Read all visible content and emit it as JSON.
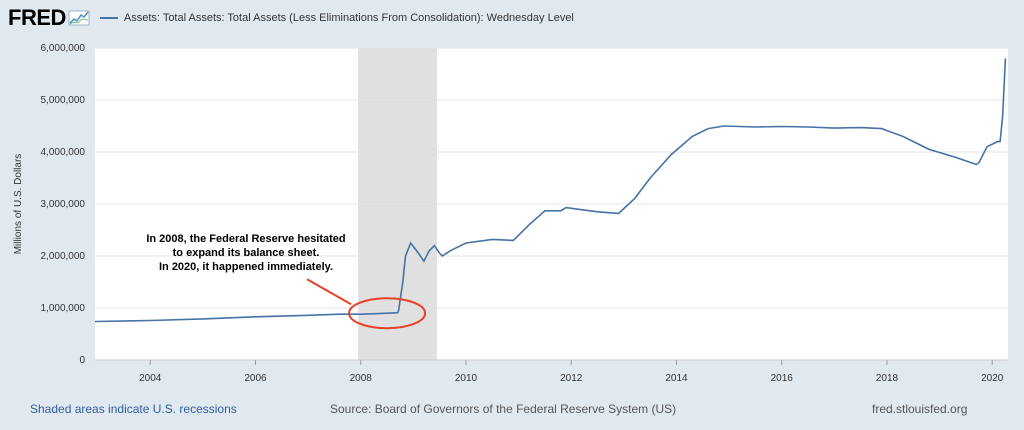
{
  "header": {
    "logo_text": "FRED",
    "logo_mark_icon": "fred-chart-mark-icon",
    "series_label": "Assets: Total Assets: Total Assets (Less Eliminations From Consolidation): Wednesday Level"
  },
  "footer": {
    "recession_note": "Shaded areas indicate U.S. recessions",
    "source": "Source: Board of Governors of the Federal Reserve System (US)",
    "site": "fred.stlouisfed.org"
  },
  "chart_data": {
    "type": "line",
    "title": "",
    "xlabel": "",
    "ylabel": "Millions of U.S. Dollars",
    "xlim": [
      2002.95,
      2020.3
    ],
    "ylim": [
      0,
      6000000
    ],
    "x_ticks": [
      "2004",
      "2006",
      "2008",
      "2010",
      "2012",
      "2014",
      "2016",
      "2018",
      "2020"
    ],
    "y_ticks": [
      "0",
      "1,000,000",
      "2,000,000",
      "3,000,000",
      "4,000,000",
      "5,000,000",
      "6,000,000"
    ],
    "grid": true,
    "line_color": "#4572a7",
    "recession_shading": [
      {
        "start": 2007.95,
        "end": 2009.45,
        "color": "#e0e0e0"
      }
    ],
    "series": [
      {
        "name": "Assets: Total Assets: Total Assets (Less Eliminations From Consolidation): Wednesday Level",
        "x": [
          2002.95,
          2004.0,
          2005.0,
          2006.0,
          2007.0,
          2007.6,
          2008.0,
          2008.5,
          2008.7,
          2008.72,
          2008.8,
          2008.85,
          2008.95,
          2009.1,
          2009.2,
          2009.3,
          2009.4,
          2009.5,
          2009.55,
          2009.7,
          2010.0,
          2010.5,
          2010.9,
          2011.2,
          2011.5,
          2011.8,
          2011.9,
          2012.5,
          2012.9,
          2013.2,
          2013.5,
          2013.9,
          2014.3,
          2014.6,
          2014.9,
          2015.5,
          2016.0,
          2016.5,
          2017.0,
          2017.5,
          2017.9,
          2018.3,
          2018.8,
          2019.3,
          2019.7,
          2019.75,
          2019.9,
          2020.1,
          2020.15,
          2020.2,
          2020.25
        ],
        "y": [
          740000,
          760000,
          790000,
          830000,
          860000,
          880000,
          880000,
          900000,
          910000,
          950000,
          1500000,
          2000000,
          2250000,
          2050000,
          1900000,
          2100000,
          2200000,
          2050000,
          2000000,
          2100000,
          2250000,
          2320000,
          2300000,
          2600000,
          2870000,
          2870000,
          2930000,
          2850000,
          2820000,
          3100000,
          3500000,
          3950000,
          4300000,
          4450000,
          4500000,
          4480000,
          4490000,
          4480000,
          4460000,
          4470000,
          4450000,
          4300000,
          4050000,
          3900000,
          3760000,
          3800000,
          4100000,
          4200000,
          4200000,
          4700000,
          5800000
        ]
      }
    ],
    "annotations": [
      {
        "text_lines": [
          "In 2008, the Federal Reserve hesitated",
          "to expand its balance sheet.",
          "In 2020, it happened immediately."
        ],
        "x": 2008.5,
        "y": 900000,
        "circle_color": "#e8402a"
      }
    ]
  }
}
